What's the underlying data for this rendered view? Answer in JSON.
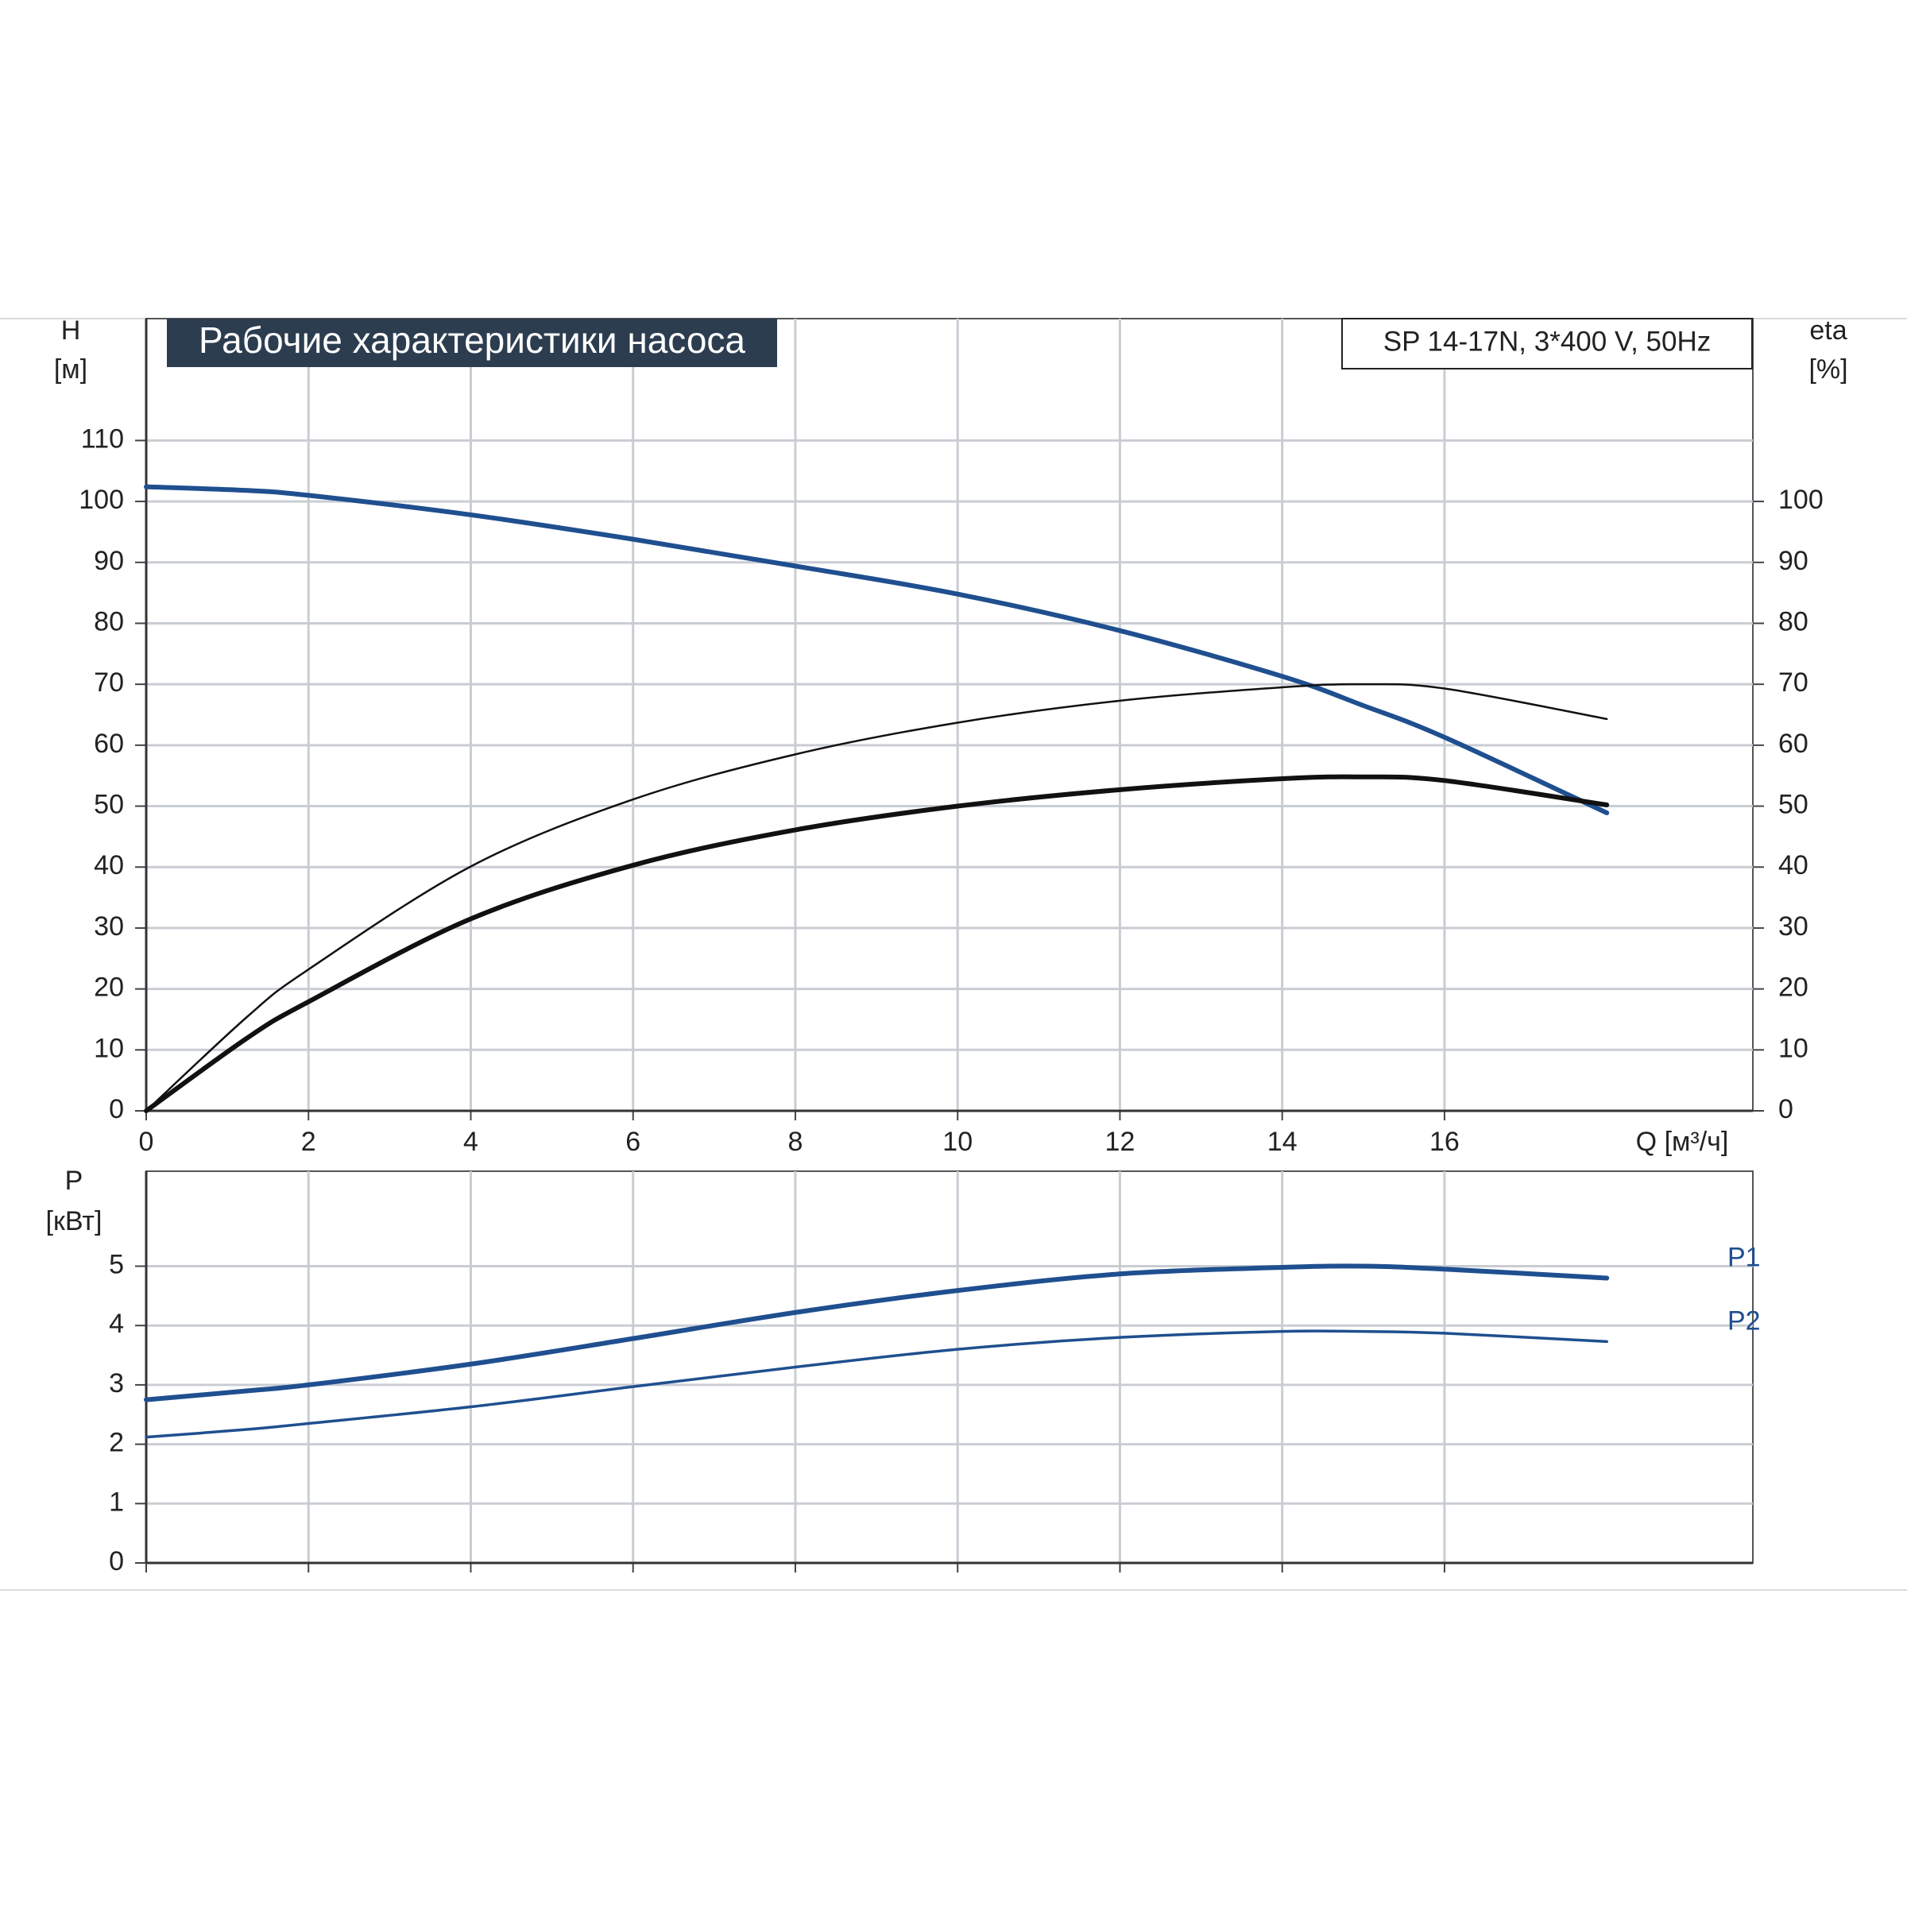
{
  "chart_data": [
    {
      "type": "line",
      "title": "Рабочие характеристики насоса",
      "subtitle": "SP 14-17N, 3*400 V, 50Hz",
      "ylabel": "H",
      "yunit": "[м]",
      "y2label": "eta",
      "y2unit": "[%]",
      "xlabel": "Q [м³/ч]",
      "x": [
        0,
        1.25,
        2,
        4,
        6,
        8,
        10,
        12,
        14,
        15,
        16,
        18
      ],
      "xlim": [
        0,
        19.8
      ],
      "xticks": [
        0,
        2,
        4,
        6,
        8,
        10,
        12,
        14,
        16
      ],
      "ylim": [
        0,
        130
      ],
      "yticks": [
        0,
        10,
        20,
        30,
        40,
        50,
        60,
        70,
        80,
        90,
        100,
        110
      ],
      "y2lim": [
        0,
        130
      ],
      "y2ticks": [
        0,
        10,
        20,
        30,
        40,
        50,
        60,
        70,
        80,
        90,
        100
      ],
      "grid": true,
      "series": [
        {
          "color": "#1f4f8f",
          "values": [
            102.4,
            101.8,
            101,
            97.8,
            93.8,
            89.4,
            84.8,
            78.8,
            71.3,
            66.5,
            61.3,
            48.9
          ]
        },
        {
          "color": "#111111",
          "axis": "y2",
          "values": [
            0,
            15.5,
            23.2,
            40.1,
            51.1,
            58.5,
            63.7,
            67.3,
            69.5,
            70,
            69.3,
            64.3
          ]
        },
        {
          "color": "#111111",
          "axis": "y2",
          "values": [
            0,
            12,
            17.9,
            31.5,
            40.3,
            46.1,
            50,
            52.7,
            54.5,
            54.8,
            54.2,
            50.2
          ]
        }
      ]
    },
    {
      "type": "line",
      "ylabel": "P",
      "yunit": "[кВт]",
      "x": [
        0,
        1.25,
        2,
        4,
        6,
        8,
        10,
        12,
        14,
        15,
        16,
        18
      ],
      "xlim": [
        0,
        19.8
      ],
      "xticks": [
        0,
        2,
        4,
        6,
        8,
        10,
        12,
        14,
        16
      ],
      "ylim": [
        0,
        6.6
      ],
      "yticks": [
        0,
        1,
        2,
        3,
        4,
        5
      ],
      "grid": true,
      "series": [
        {
          "name": "P1",
          "color": "#1f4f8f",
          "values": [
            2.75,
            2.9,
            3.0,
            3.35,
            3.78,
            4.22,
            4.59,
            4.87,
            4.98,
            5.0,
            4.95,
            4.8
          ]
        },
        {
          "name": "P2",
          "color": "#1f4f8f",
          "values": [
            2.12,
            2.25,
            2.35,
            2.63,
            2.97,
            3.3,
            3.6,
            3.8,
            3.9,
            3.9,
            3.87,
            3.73
          ]
        }
      ]
    }
  ]
}
